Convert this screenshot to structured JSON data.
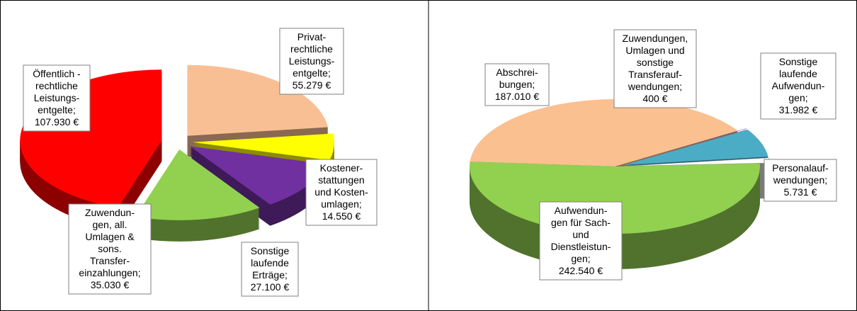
{
  "chart_data": [
    {
      "type": "pie",
      "categories": [
        "Privat-\nrechtliche\nLeistungs-\nentgelte;",
        "Kostener-\nstattungen\nund Kosten-\numlagen;",
        "Sonstige\nlaufende\nErträge;",
        "Zuwendun-\ngen, all.\nUmlagen &\nsons.\nTransfer-\neinzahlungen;",
        "Öffentlich -\nrechtliche\nLeistungs-\nentgelte;"
      ],
      "values": [
        55279,
        14550,
        27100,
        35030,
        107930
      ],
      "value_labels": [
        "55.279 €",
        "14.550 €",
        "27.100 €",
        "35.030 €",
        "107.930 €"
      ],
      "colors": [
        "#f9bf94",
        "#ffff00",
        "#7030a0",
        "#92d050",
        "#ff0000"
      ]
    },
    {
      "type": "pie",
      "categories": [
        "Zuwendungen,\nUmlagen und\nsonstige\nTransferauf-\nwendungen;",
        "Sonstige\nlaufende\nAufwendun-\ngen;",
        "Personalauf-\nwendungen;",
        "Aufwendun-\ngen für Sach-\nund\nDienstleistun-\ngen;",
        "Abschrei-\nbungen;"
      ],
      "values": [
        400,
        31982,
        5731,
        242540,
        187010
      ],
      "value_labels": [
        "400 €",
        "31.982 €",
        "5.731 €",
        "242.540 €",
        "187.010 €"
      ],
      "colors": [
        "#7030a0",
        "#4bacc6",
        "#ffffff",
        "#92d050",
        "#fac090"
      ]
    }
  ]
}
